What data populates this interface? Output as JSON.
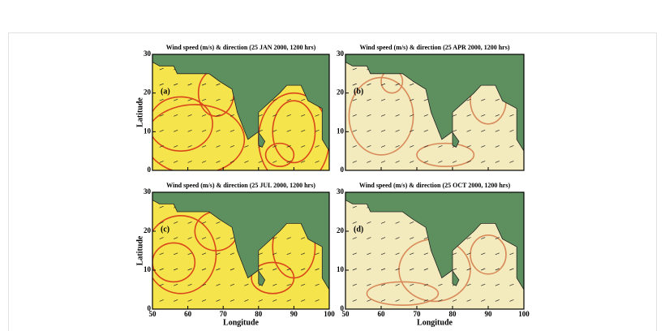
{
  "figure": {
    "panels": [
      {
        "title": "Wind speed (m/s) & direction (25 JAN 2000, 1200 hrs)",
        "label": "(a)"
      },
      {
        "title": "Wind speed (m/s) & direction (25 APR 2000, 1200 hrs)",
        "label": "(b)"
      },
      {
        "title": "Wind speed (m/s) & direction (25 JUL 2000, 1200 hrs)",
        "label": "(c)"
      },
      {
        "title": "Wind speed (m/s) & direction (25 OCT 2000, 1200 hrs)",
        "label": "(d)"
      }
    ],
    "y_axis_label": "Latitude",
    "x_axis_label": "Longitude",
    "xlim": [
      50,
      100
    ],
    "ylim": [
      0,
      30
    ],
    "xticks": [
      50,
      60,
      70,
      80,
      90,
      100
    ],
    "yticks": [
      0,
      10,
      20,
      30
    ]
  }
}
